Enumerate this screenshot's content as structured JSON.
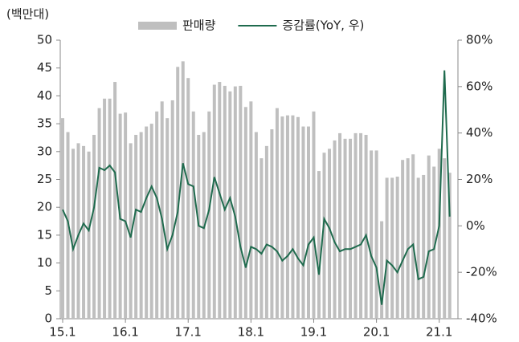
{
  "chart_data": {
    "type": "bar_line",
    "y_unit": "(백만대)",
    "categories": [
      "15.1",
      null,
      null,
      null,
      null,
      null,
      null,
      null,
      null,
      null,
      null,
      null,
      "16.1",
      null,
      null,
      null,
      null,
      null,
      null,
      null,
      null,
      null,
      null,
      null,
      "17.1",
      null,
      null,
      null,
      null,
      null,
      null,
      null,
      null,
      null,
      null,
      null,
      "18.1",
      null,
      null,
      null,
      null,
      null,
      null,
      null,
      null,
      null,
      null,
      null,
      "19.1",
      null,
      null,
      null,
      null,
      null,
      null,
      null,
      null,
      null,
      null,
      null,
      "20.1",
      null,
      null,
      null,
      null,
      null,
      null,
      null,
      null,
      null,
      null,
      null,
      "21.1",
      null,
      null
    ],
    "series": [
      {
        "name": "판매량",
        "type": "bar",
        "color": "#bfbfbf",
        "values": [
          36,
          33.5,
          30.5,
          31.5,
          31,
          30,
          33,
          37.8,
          39.5,
          39.5,
          42.5,
          36.8,
          37,
          31.5,
          33,
          33.5,
          34.5,
          35,
          37.2,
          39,
          36,
          39.2,
          45.2,
          46.2,
          43.2,
          37.2,
          33,
          33.5,
          37.2,
          42,
          42.5,
          41.8,
          40.8,
          41.7,
          41.8,
          38,
          39,
          33.5,
          28.8,
          31,
          34,
          37.8,
          36.3,
          36.5,
          36.5,
          36.2,
          34.5,
          34.5,
          37.2,
          26.5,
          29.8,
          30.5,
          32,
          33.3,
          32.3,
          32.3,
          33.3,
          33.3,
          33,
          30.2,
          30.2,
          17.5,
          25.3,
          25.3,
          25.5,
          28.5,
          28.8,
          29.5,
          25.3,
          25.8,
          29.3,
          27.3,
          30.5,
          28.8,
          26.2
        ]
      },
      {
        "name": "증감률(YoY, 우)",
        "type": "line",
        "axis": "y2",
        "color": "#1f6b4e",
        "values": [
          7,
          2,
          -10,
          -4,
          1,
          -2,
          8,
          25,
          24,
          26,
          23,
          3,
          2,
          -5,
          7,
          6,
          12,
          17,
          12,
          3,
          -10,
          -4,
          6,
          27,
          18,
          17,
          0,
          -1,
          7,
          21,
          14,
          7,
          12,
          4,
          -9,
          -18,
          -9,
          -10,
          -12,
          -8,
          -9,
          -11,
          -15,
          -13,
          -10,
          -14,
          -17,
          -8,
          -5,
          -21,
          3,
          -1,
          -7,
          -11,
          -10,
          -10,
          -9,
          -8,
          -4,
          -13,
          -18,
          -34,
          -15,
          -17,
          -20,
          -15,
          -10,
          -8,
          -23,
          -22,
          -11,
          -10,
          0,
          67,
          4
        ]
      }
    ],
    "ylim": [
      0,
      50
    ],
    "yticks": [
      0,
      5,
      10,
      15,
      20,
      25,
      30,
      35,
      40,
      45,
      50
    ],
    "y2lim": [
      -40,
      80
    ],
    "y2ticks": [
      {
        "value": -40,
        "label": "-40%"
      },
      {
        "value": -20,
        "label": "-20%"
      },
      {
        "value": 0,
        "label": "0%"
      },
      {
        "value": 20,
        "label": "20%"
      },
      {
        "value": 40,
        "label": "40%"
      },
      {
        "value": 60,
        "label": "60%"
      },
      {
        "value": 80,
        "label": "80%"
      }
    ],
    "legend": "top"
  }
}
